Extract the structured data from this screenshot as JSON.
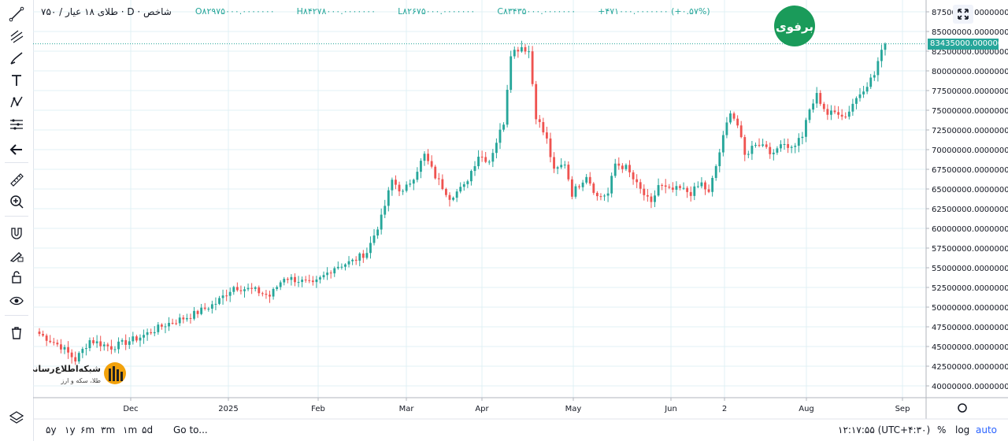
{
  "legend": {
    "symbol": "طلای ۱۸ عیار / ۷۵۰",
    "interval": "D",
    "source": "شاخص",
    "open": "O۸۲۹۷۵۰۰۰.۰۰۰۰۰۰۰",
    "high": "H۸۴۲۷۸۰۰۰.۰۰۰۰۰۰۰",
    "low": "L۸۲۶۷۵۰۰۰.۰۰۰۰۰۰۰",
    "close": "C۸۳۴۳۵۰۰۰.۰۰۰۰۰۰۰",
    "change": "+۴۷۱۰۰۰.۰۰۰۰۰۰۰ (+۰.۵۷%)"
  },
  "last_price_label": "83435000.0000000",
  "logo_top": "برفوی",
  "logo_bottom_line1": "شبکه‌اطلاع‌رسانی",
  "logo_bottom_line2": "طلا، سکه و ارز",
  "bottom_bar": {
    "ranges": [
      "۵y",
      "۱y",
      "۶m",
      "۳m",
      "۱m",
      "۵d"
    ],
    "goto": "Go to...",
    "time": "۱۲:۱۷:۵۵ (UTC+۴:۳۰)",
    "percent": "%",
    "log": "log",
    "auto": "auto"
  },
  "colors": {
    "up": "#26a69a",
    "down": "#ef5350",
    "grid": "#e0f0f4",
    "accent": "#2962ff"
  },
  "tools": [
    "trend-line-icon",
    "fib-icon",
    "brush-icon",
    "text-icon",
    "pattern-icon",
    "measure-lines-icon",
    "back-arrow-icon",
    "ruler-icon",
    "zoom-icon",
    "magnet-icon",
    "lock-draw-icon",
    "lock-icon",
    "eye-icon",
    "trash-icon"
  ],
  "chart_data": {
    "type": "candlestick",
    "y_ticks": [
      "87500000.0000000",
      "85000000.0000000",
      "82500000.0000000",
      "80000000.0000000",
      "77500000.0000000",
      "75000000.0000000",
      "72500000.0000000",
      "70000000.0000000",
      "67500000.0000000",
      "65000000.0000000",
      "62500000.0000000",
      "60000000.0000000",
      "57500000.0000000",
      "55000000.0000000",
      "52500000.0000000",
      "50000000.0000000",
      "47500000.0000000",
      "45000000.0000000",
      "42500000.0000000",
      "40000000.0000000"
    ],
    "y_tick_values": [
      87500000,
      85000000,
      82500000,
      80000000,
      77500000,
      75000000,
      72500000,
      70000000,
      67500000,
      65000000,
      62500000,
      60000000,
      57500000,
      55000000,
      52500000,
      50000000,
      47500000,
      45000000,
      42500000,
      40000000
    ],
    "x_labels": [
      "Dec",
      "2025",
      "Feb",
      "Mar",
      "Apr",
      "May",
      "Jun",
      "2",
      "Aug",
      "Sep"
    ],
    "ylim": [
      38500000,
      89000000
    ],
    "close_path": [
      [
        0,
        46600000
      ],
      [
        6,
        45000000
      ],
      [
        10,
        43300000
      ],
      [
        14,
        45800000
      ],
      [
        20,
        44900000
      ],
      [
        28,
        46200000
      ],
      [
        35,
        47800000
      ],
      [
        42,
        48900000
      ],
      [
        49,
        50500000
      ],
      [
        54,
        52600000
      ],
      [
        60,
        52100000
      ],
      [
        64,
        51400000
      ],
      [
        68,
        53800000
      ],
      [
        72,
        53400000
      ],
      [
        76,
        52800000
      ],
      [
        82,
        55100000
      ],
      [
        87,
        55800000
      ],
      [
        91,
        57000000
      ],
      [
        95,
        61300000
      ],
      [
        98,
        66100000
      ],
      [
        101,
        64500000
      ],
      [
        104,
        66600000
      ],
      [
        107,
        69300000
      ],
      [
        110,
        66600000
      ],
      [
        114,
        64000000
      ],
      [
        118,
        65300000
      ],
      [
        122,
        69300000
      ],
      [
        125,
        68600000
      ],
      [
        129,
        73500000
      ],
      [
        131,
        82300000
      ],
      [
        134,
        83100000
      ],
      [
        136,
        82500000
      ],
      [
        138,
        74300000
      ],
      [
        141,
        71200000
      ],
      [
        143,
        67200000
      ],
      [
        146,
        68300000
      ],
      [
        148,
        64400000
      ],
      [
        152,
        66800000
      ],
      [
        155,
        64000000
      ],
      [
        158,
        64400000
      ],
      [
        160,
        68200000
      ],
      [
        163,
        67700000
      ],
      [
        166,
        65500000
      ],
      [
        170,
        63000000
      ],
      [
        172,
        65500000
      ],
      [
        175,
        64800000
      ],
      [
        178,
        65000000
      ],
      [
        181,
        64500000
      ],
      [
        184,
        65700000
      ],
      [
        186,
        64400000
      ],
      [
        188,
        67900000
      ],
      [
        190,
        71500000
      ],
      [
        192,
        75000000
      ],
      [
        194,
        73100000
      ],
      [
        196,
        69200000
      ],
      [
        199,
        70900000
      ],
      [
        202,
        70500000
      ],
      [
        204,
        69200000
      ],
      [
        206,
        71100000
      ],
      [
        209,
        70200000
      ],
      [
        212,
        71800000
      ],
      [
        214,
        75000000
      ],
      [
        216,
        76900000
      ],
      [
        219,
        74500000
      ],
      [
        222,
        74800000
      ],
      [
        224,
        74200000
      ],
      [
        226,
        75900000
      ],
      [
        229,
        77800000
      ],
      [
        232,
        79500000
      ],
      [
        233,
        81200000
      ],
      [
        235,
        83435000
      ]
    ],
    "last_price": 83435000
  }
}
